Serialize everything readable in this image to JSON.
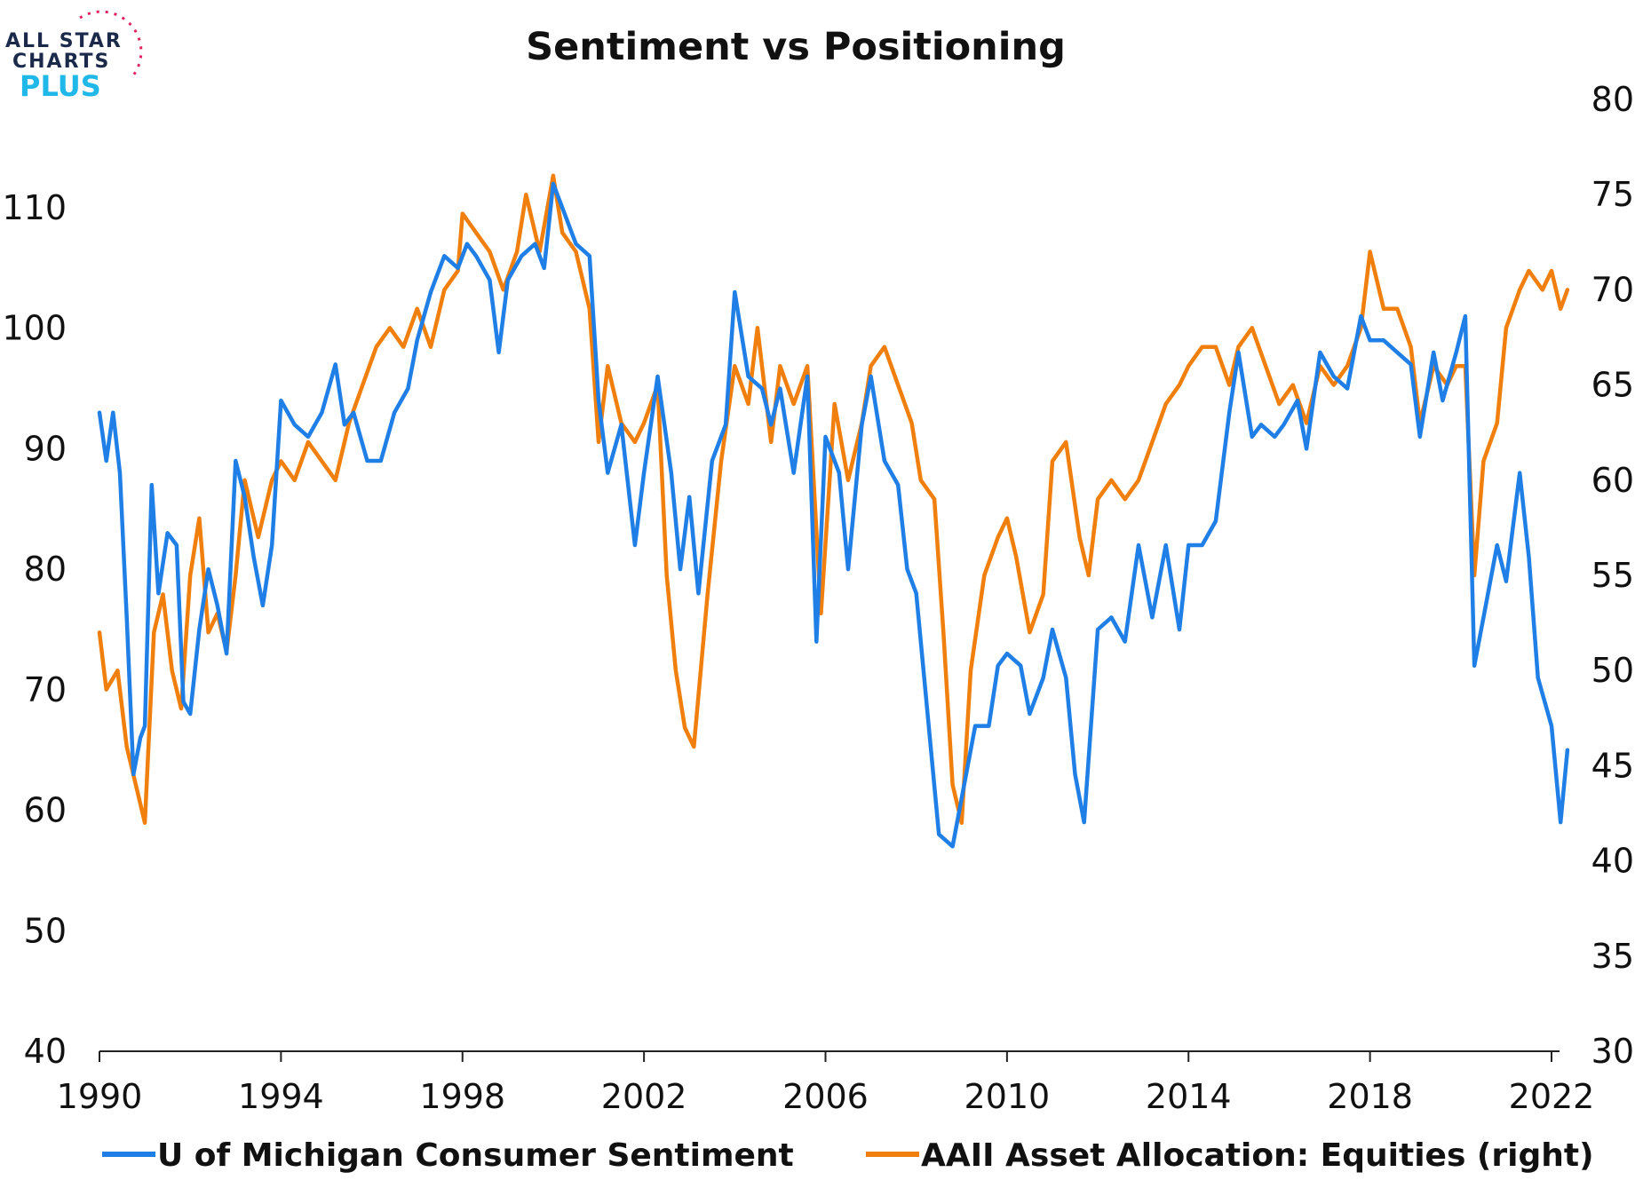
{
  "logo": {
    "line1": "ALL STAR",
    "line2": "CHARTS",
    "line3": "PLUS"
  },
  "chart_data": {
    "type": "line",
    "title": "Sentiment vs Positioning",
    "x_ticks": [
      "1990",
      "1994",
      "1998",
      "2002",
      "2006",
      "2010",
      "2014",
      "2018",
      "2022"
    ],
    "xlim": [
      1990,
      2023
    ],
    "left_axis": {
      "ticks": [
        "40",
        "50",
        "60",
        "70",
        "80",
        "90",
        "100",
        "110"
      ],
      "ylim": [
        40,
        118
      ]
    },
    "right_axis": {
      "ticks": [
        "30",
        "35",
        "40",
        "45",
        "50",
        "55",
        "60",
        "65",
        "70",
        "75",
        "80"
      ],
      "ylim": [
        30,
        80
      ]
    },
    "grid": false,
    "legend_position": "bottom",
    "series": [
      {
        "name": "U of Michigan Consumer Sentiment",
        "axis": "left",
        "color": "#1f7fe6",
        "points": [
          [
            1990.0,
            93
          ],
          [
            1990.15,
            89
          ],
          [
            1990.3,
            93
          ],
          [
            1990.45,
            88
          ],
          [
            1990.6,
            76
          ],
          [
            1990.75,
            63
          ],
          [
            1990.9,
            66
          ],
          [
            1991.0,
            67
          ],
          [
            1991.15,
            87
          ],
          [
            1991.3,
            78
          ],
          [
            1991.5,
            83
          ],
          [
            1991.7,
            82
          ],
          [
            1991.85,
            69
          ],
          [
            1992.0,
            68
          ],
          [
            1992.2,
            75
          ],
          [
            1992.4,
            80
          ],
          [
            1992.6,
            77
          ],
          [
            1992.8,
            73
          ],
          [
            1993.0,
            89
          ],
          [
            1993.2,
            86
          ],
          [
            1993.4,
            81
          ],
          [
            1993.6,
            77
          ],
          [
            1993.8,
            82
          ],
          [
            1994.0,
            94
          ],
          [
            1994.3,
            92
          ],
          [
            1994.6,
            91
          ],
          [
            1994.9,
            93
          ],
          [
            1995.2,
            97
          ],
          [
            1995.4,
            92
          ],
          [
            1995.6,
            93
          ],
          [
            1995.9,
            89
          ],
          [
            1996.2,
            89
          ],
          [
            1996.5,
            93
          ],
          [
            1996.8,
            95
          ],
          [
            1997.0,
            99
          ],
          [
            1997.3,
            103
          ],
          [
            1997.6,
            106
          ],
          [
            1997.9,
            105
          ],
          [
            1998.1,
            107
          ],
          [
            1998.3,
            106
          ],
          [
            1998.6,
            104
          ],
          [
            1998.8,
            98
          ],
          [
            1999.0,
            104
          ],
          [
            1999.3,
            106
          ],
          [
            1999.6,
            107
          ],
          [
            1999.8,
            105
          ],
          [
            2000.0,
            112
          ],
          [
            2000.2,
            110
          ],
          [
            2000.5,
            107
          ],
          [
            2000.8,
            106
          ],
          [
            2001.0,
            94
          ],
          [
            2001.2,
            88
          ],
          [
            2001.5,
            92
          ],
          [
            2001.8,
            82
          ],
          [
            2002.0,
            88
          ],
          [
            2002.3,
            96
          ],
          [
            2002.6,
            88
          ],
          [
            2002.8,
            80
          ],
          [
            2003.0,
            86
          ],
          [
            2003.2,
            78
          ],
          [
            2003.5,
            89
          ],
          [
            2003.8,
            92
          ],
          [
            2004.0,
            103
          ],
          [
            2004.3,
            96
          ],
          [
            2004.6,
            95
          ],
          [
            2004.8,
            92
          ],
          [
            2005.0,
            95
          ],
          [
            2005.3,
            88
          ],
          [
            2005.6,
            96
          ],
          [
            2005.8,
            74
          ],
          [
            2006.0,
            91
          ],
          [
            2006.3,
            88
          ],
          [
            2006.5,
            80
          ],
          [
            2006.8,
            92
          ],
          [
            2007.0,
            96
          ],
          [
            2007.3,
            89
          ],
          [
            2007.6,
            87
          ],
          [
            2007.8,
            80
          ],
          [
            2008.0,
            78
          ],
          [
            2008.3,
            66
          ],
          [
            2008.5,
            58
          ],
          [
            2008.8,
            57
          ],
          [
            2009.0,
            61
          ],
          [
            2009.3,
            67
          ],
          [
            2009.6,
            67
          ],
          [
            2009.8,
            72
          ],
          [
            2010.0,
            73
          ],
          [
            2010.3,
            72
          ],
          [
            2010.5,
            68
          ],
          [
            2010.8,
            71
          ],
          [
            2011.0,
            75
          ],
          [
            2011.3,
            71
          ],
          [
            2011.5,
            63
          ],
          [
            2011.7,
            59
          ],
          [
            2012.0,
            75
          ],
          [
            2012.3,
            76
          ],
          [
            2012.6,
            74
          ],
          [
            2012.9,
            82
          ],
          [
            2013.2,
            76
          ],
          [
            2013.5,
            82
          ],
          [
            2013.8,
            75
          ],
          [
            2014.0,
            82
          ],
          [
            2014.3,
            82
          ],
          [
            2014.6,
            84
          ],
          [
            2014.9,
            93
          ],
          [
            2015.1,
            98
          ],
          [
            2015.4,
            91
          ],
          [
            2015.6,
            92
          ],
          [
            2015.9,
            91
          ],
          [
            2016.1,
            92
          ],
          [
            2016.4,
            94
          ],
          [
            2016.6,
            90
          ],
          [
            2016.9,
            98
          ],
          [
            2017.2,
            96
          ],
          [
            2017.5,
            95
          ],
          [
            2017.8,
            101
          ],
          [
            2018.0,
            99
          ],
          [
            2018.3,
            99
          ],
          [
            2018.6,
            98
          ],
          [
            2018.9,
            97
          ],
          [
            2019.1,
            91
          ],
          [
            2019.4,
            98
          ],
          [
            2019.6,
            94
          ],
          [
            2019.9,
            98
          ],
          [
            2020.1,
            101
          ],
          [
            2020.3,
            72
          ],
          [
            2020.5,
            76
          ],
          [
            2020.8,
            82
          ],
          [
            2021.0,
            79
          ],
          [
            2021.3,
            88
          ],
          [
            2021.5,
            81
          ],
          [
            2021.7,
            71
          ],
          [
            2022.0,
            67
          ],
          [
            2022.2,
            59
          ],
          [
            2022.35,
            65
          ]
        ]
      },
      {
        "name": "AAII Asset Allocation: Equities (right)",
        "axis": "right",
        "color": "#f07f0e",
        "points": [
          [
            1990.0,
            52
          ],
          [
            1990.15,
            49
          ],
          [
            1990.4,
            50
          ],
          [
            1990.6,
            46
          ],
          [
            1990.8,
            44
          ],
          [
            1991.0,
            42
          ],
          [
            1991.2,
            52
          ],
          [
            1991.4,
            54
          ],
          [
            1991.6,
            50
          ],
          [
            1991.8,
            48
          ],
          [
            1992.0,
            55
          ],
          [
            1992.2,
            58
          ],
          [
            1992.4,
            52
          ],
          [
            1992.6,
            53
          ],
          [
            1992.8,
            51
          ],
          [
            1993.0,
            55
          ],
          [
            1993.2,
            60
          ],
          [
            1993.5,
            57
          ],
          [
            1993.8,
            60
          ],
          [
            1994.0,
            61
          ],
          [
            1994.3,
            60
          ],
          [
            1994.6,
            62
          ],
          [
            1994.9,
            61
          ],
          [
            1995.2,
            60
          ],
          [
            1995.5,
            63
          ],
          [
            1995.8,
            65
          ],
          [
            1996.1,
            67
          ],
          [
            1996.4,
            68
          ],
          [
            1996.7,
            67
          ],
          [
            1997.0,
            69
          ],
          [
            1997.3,
            67
          ],
          [
            1997.6,
            70
          ],
          [
            1997.9,
            71
          ],
          [
            1998.0,
            74
          ],
          [
            1998.3,
            73
          ],
          [
            1998.6,
            72
          ],
          [
            1998.9,
            70
          ],
          [
            1999.2,
            72
          ],
          [
            1999.4,
            75
          ],
          [
            1999.7,
            72
          ],
          [
            2000.0,
            76
          ],
          [
            2000.2,
            73
          ],
          [
            2000.5,
            72
          ],
          [
            2000.8,
            69
          ],
          [
            2001.0,
            62
          ],
          [
            2001.2,
            66
          ],
          [
            2001.5,
            63
          ],
          [
            2001.8,
            62
          ],
          [
            2002.0,
            63
          ],
          [
            2002.3,
            65
          ],
          [
            2002.5,
            55
          ],
          [
            2002.7,
            50
          ],
          [
            2002.9,
            47
          ],
          [
            2003.1,
            46
          ],
          [
            2003.4,
            54
          ],
          [
            2003.7,
            61
          ],
          [
            2004.0,
            66
          ],
          [
            2004.3,
            64
          ],
          [
            2004.5,
            68
          ],
          [
            2004.8,
            62
          ],
          [
            2005.0,
            66
          ],
          [
            2005.3,
            64
          ],
          [
            2005.6,
            66
          ],
          [
            2005.9,
            53
          ],
          [
            2006.2,
            64
          ],
          [
            2006.5,
            60
          ],
          [
            2006.8,
            63
          ],
          [
            2007.0,
            66
          ],
          [
            2007.3,
            67
          ],
          [
            2007.6,
            65
          ],
          [
            2007.9,
            63
          ],
          [
            2008.1,
            60
          ],
          [
            2008.4,
            59
          ],
          [
            2008.6,
            52
          ],
          [
            2008.8,
            44
          ],
          [
            2009.0,
            42
          ],
          [
            2009.2,
            50
          ],
          [
            2009.5,
            55
          ],
          [
            2009.8,
            57
          ],
          [
            2010.0,
            58
          ],
          [
            2010.2,
            56
          ],
          [
            2010.5,
            52
          ],
          [
            2010.8,
            54
          ],
          [
            2011.0,
            61
          ],
          [
            2011.3,
            62
          ],
          [
            2011.6,
            57
          ],
          [
            2011.8,
            55
          ],
          [
            2012.0,
            59
          ],
          [
            2012.3,
            60
          ],
          [
            2012.6,
            59
          ],
          [
            2012.9,
            60
          ],
          [
            2013.2,
            62
          ],
          [
            2013.5,
            64
          ],
          [
            2013.8,
            65
          ],
          [
            2014.0,
            66
          ],
          [
            2014.3,
            67
          ],
          [
            2014.6,
            67
          ],
          [
            2014.9,
            65
          ],
          [
            2015.1,
            67
          ],
          [
            2015.4,
            68
          ],
          [
            2015.7,
            66
          ],
          [
            2016.0,
            64
          ],
          [
            2016.3,
            65
          ],
          [
            2016.6,
            63
          ],
          [
            2016.9,
            66
          ],
          [
            2017.2,
            65
          ],
          [
            2017.5,
            66
          ],
          [
            2017.8,
            68
          ],
          [
            2018.0,
            72
          ],
          [
            2018.3,
            69
          ],
          [
            2018.6,
            69
          ],
          [
            2018.9,
            67
          ],
          [
            2019.1,
            63
          ],
          [
            2019.4,
            66
          ],
          [
            2019.7,
            65
          ],
          [
            2019.9,
            66
          ],
          [
            2020.1,
            66
          ],
          [
            2020.3,
            55
          ],
          [
            2020.5,
            61
          ],
          [
            2020.8,
            63
          ],
          [
            2021.0,
            68
          ],
          [
            2021.3,
            70
          ],
          [
            2021.5,
            71
          ],
          [
            2021.8,
            70
          ],
          [
            2022.0,
            71
          ],
          [
            2022.2,
            69
          ],
          [
            2022.35,
            70
          ]
        ]
      }
    ]
  }
}
